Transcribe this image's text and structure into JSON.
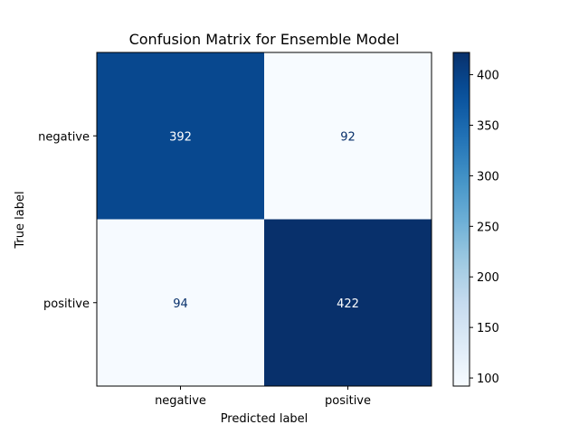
{
  "chart_data": {
    "type": "heatmap",
    "title": "Confusion Matrix for Ensemble Model",
    "xlabel": "Predicted label",
    "ylabel": "True label",
    "x_categories": [
      "negative",
      "positive"
    ],
    "y_categories": [
      "negative",
      "positive"
    ],
    "values": [
      [
        392,
        92
      ],
      [
        94,
        422
      ]
    ],
    "colormap": "Blues",
    "vmin": 92,
    "vmax": 422,
    "colorbar_ticks": [
      100,
      150,
      200,
      250,
      300,
      350,
      400
    ],
    "light_text_color": "#ffffff",
    "dark_text_color": "#08306b"
  }
}
